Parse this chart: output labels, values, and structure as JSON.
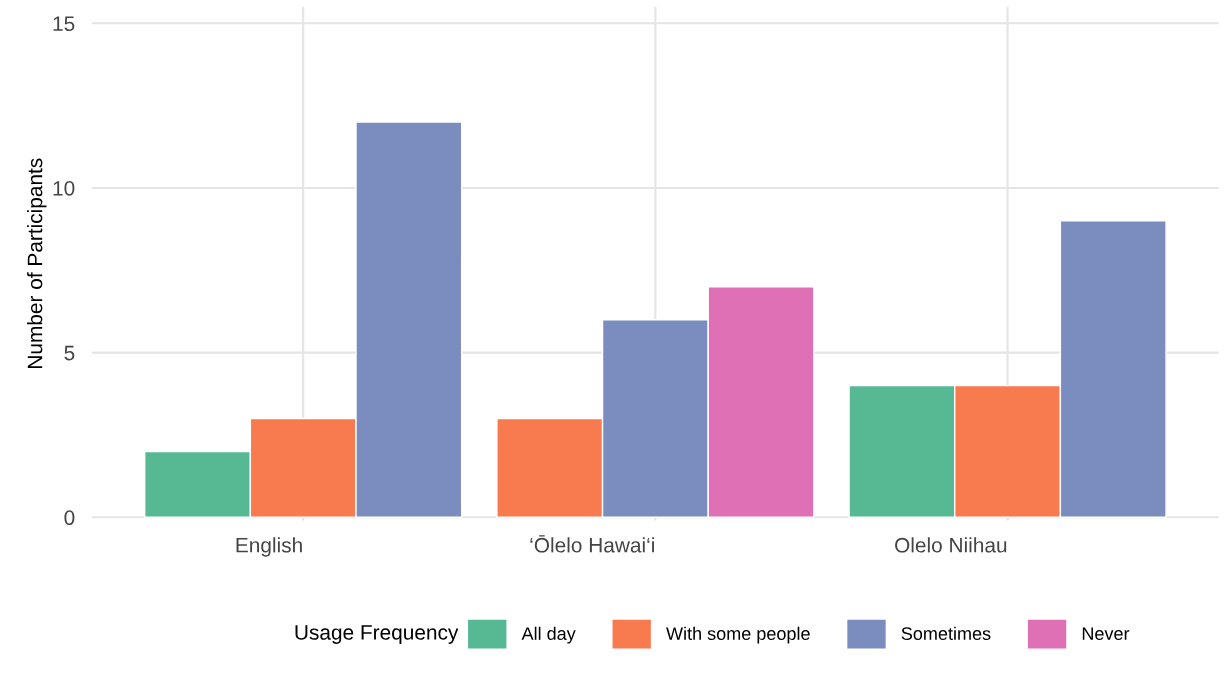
{
  "chart_data": {
    "type": "bar",
    "ylabel": "Number of Participants",
    "legend_title": "Usage Frequency",
    "categories": [
      "English",
      "‘Ōlelo Hawai‘i",
      "Olelo Niihau"
    ],
    "series": [
      {
        "name": "All day",
        "color": "#57b894",
        "values": [
          2,
          null,
          4
        ]
      },
      {
        "name": "With some people",
        "color": "#f87b50",
        "values": [
          3,
          3,
          4
        ]
      },
      {
        "name": "Sometimes",
        "color": "#7b8dbf",
        "values": [
          12,
          6,
          9
        ]
      },
      {
        "name": "Never",
        "color": "#e070b5",
        "values": [
          null,
          7,
          null
        ]
      }
    ],
    "ylim": [
      -0.1,
      15.5
    ],
    "yticks": [
      0,
      5,
      10,
      15
    ],
    "grid": true,
    "legend": "bottom"
  }
}
